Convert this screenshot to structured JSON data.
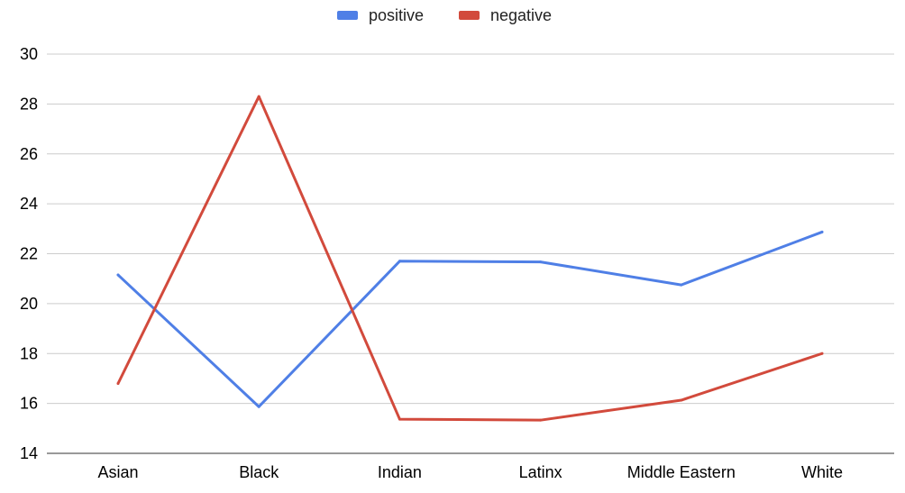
{
  "chart_data": {
    "type": "line",
    "categories": [
      "Asian",
      "Black",
      "Indian",
      "Latinx",
      "Middle Eastern",
      "White"
    ],
    "series": [
      {
        "name": "positive",
        "color": "#4f7fe6",
        "values": [
          21.15,
          15.87,
          21.7,
          21.67,
          20.75,
          22.87
        ]
      },
      {
        "name": "negative",
        "color": "#d24a3c",
        "values": [
          16.8,
          28.3,
          15.37,
          15.33,
          16.13,
          18.0
        ]
      }
    ],
    "ylim": [
      14,
      30
    ],
    "yticks": [
      14,
      16,
      18,
      20,
      22,
      24,
      26,
      28,
      30
    ],
    "grid": true,
    "legend_position": "top-center"
  }
}
